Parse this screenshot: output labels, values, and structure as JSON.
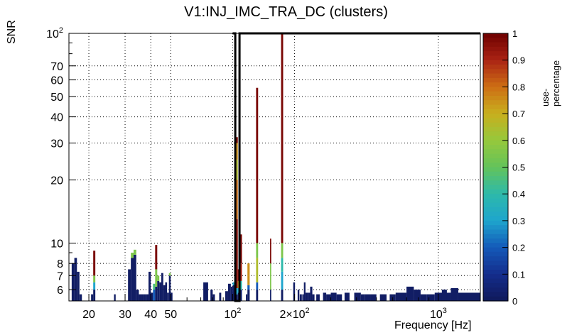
{
  "chart_data": {
    "type": "heatmap",
    "title": "V1:INJ_IMC_TRA_DC (clusters)",
    "xlabel": "Frequency [Hz]",
    "ylabel": "SNR",
    "zlabel": "use-percentage",
    "x_scale": "log",
    "y_scale": "log",
    "xlim": [
      16,
      1600
    ],
    "ylim": [
      5.3,
      100
    ],
    "zlim": [
      0,
      1
    ],
    "x_ticks": [
      "20",
      "30",
      "40",
      "50",
      "10^2",
      "2×10^2",
      "10^3"
    ],
    "y_ticks": [
      "6",
      "7",
      "8",
      "10",
      "20",
      "30",
      "40",
      "50",
      "60",
      "70",
      "10^2"
    ],
    "z_ticks": [
      "0",
      "0.1",
      "0.2",
      "0.3",
      "0.4",
      "0.5",
      "0.6",
      "0.7",
      "0.8",
      "0.9",
      "1"
    ],
    "bins": [
      [
        [
          16.5,
          17
        ],
        [
          5.3,
          8,
          0.02
        ]
      ],
      [
        [
          17,
          17.5
        ],
        [
          5.3,
          8.5,
          0.02
        ]
      ],
      [
        [
          17.5,
          18
        ],
        [
          5.3,
          7.3,
          0.02
        ]
      ],
      [
        [
          18,
          18.5
        ],
        [
          5.3,
          5.7,
          0.02
        ]
      ],
      [
        [
          20.5,
          21
        ],
        [
          5.3,
          5.7,
          0.02
        ]
      ],
      [
        [
          21,
          21.5
        ],
        [
          5.3,
          6,
          0.02
        ],
        [
          6,
          6.5,
          0.3
        ],
        [
          6.5,
          7,
          0.55
        ],
        [
          7,
          9.2,
          0.98
        ]
      ],
      [
        [
          26.5,
          27
        ],
        [
          5.3,
          5.7,
          0.02
        ]
      ],
      [
        [
          31,
          32
        ],
        [
          5.3,
          7.5,
          0.02
        ]
      ],
      [
        [
          32,
          33
        ],
        [
          5.3,
          8.5,
          0.02
        ],
        [
          8.5,
          9,
          0.55
        ]
      ],
      [
        [
          33,
          34
        ],
        [
          5.3,
          8.8,
          0.02
        ],
        [
          8.8,
          9.3,
          0.55
        ]
      ],
      [
        [
          34,
          35
        ],
        [
          5.3,
          6,
          0.02
        ]
      ],
      [
        [
          35,
          36
        ],
        [
          5.3,
          5.7,
          0.02
        ]
      ],
      [
        [
          36,
          37
        ],
        [
          5.3,
          5.7,
          0.02
        ]
      ],
      [
        [
          37,
          38
        ],
        [
          5.3,
          5.7,
          0.02
        ]
      ],
      [
        [
          38,
          39
        ],
        [
          5.3,
          5.7,
          0.02
        ]
      ],
      [
        [
          39,
          40
        ],
        [
          5.3,
          7.3,
          0.02
        ]
      ],
      [
        [
          40,
          41
        ],
        [
          5.3,
          5.8,
          0.02
        ]
      ],
      [
        [
          41,
          42
        ],
        [
          5.3,
          6,
          0.2
        ],
        [
          6,
          6.4,
          0.45
        ]
      ],
      [
        [
          42,
          43
        ],
        [
          5.3,
          6.2,
          0.02
        ],
        [
          6.2,
          7.5,
          0.55
        ],
        [
          7.5,
          9.8,
          0.98
        ]
      ],
      [
        [
          43,
          44
        ],
        [
          5.3,
          6.6,
          0.02
        ],
        [
          6.6,
          7,
          0.55
        ]
      ],
      [
        [
          44,
          45
        ],
        [
          5.3,
          6.5,
          0.02
        ]
      ],
      [
        [
          45,
          46
        ],
        [
          5.3,
          7.2,
          0.02
        ]
      ],
      [
        [
          46,
          47
        ],
        [
          5.3,
          6.3,
          0.02
        ]
      ],
      [
        [
          47,
          48
        ],
        [
          5.3,
          6.1,
          0.02
        ],
        [
          6.1,
          6.5,
          0.02
        ]
      ],
      [
        [
          48,
          49
        ],
        [
          5.3,
          5.8,
          0.02
        ]
      ],
      [
        [
          49,
          50
        ],
        [
          5.3,
          7,
          0.02
        ],
        [
          7,
          7.2,
          0.55
        ]
      ],
      [
        [
          50,
          51
        ],
        [
          5.3,
          5.8,
          0.02
        ]
      ],
      [
        [
          72,
          76
        ],
        [
          5.3,
          6.5,
          0.02
        ]
      ],
      [
        [
          78,
          80
        ],
        [
          5.3,
          6,
          0.02
        ]
      ],
      [
        [
          80,
          82
        ],
        [
          5.3,
          5.7,
          0.02
        ]
      ],
      [
        [
          86,
          88
        ],
        [
          5.3,
          5.8,
          0.02
        ]
      ],
      [
        [
          92,
          95
        ],
        [
          5.3,
          5.9,
          0.02
        ]
      ],
      [
        [
          95,
          98
        ],
        [
          5.3,
          6.4,
          0.02
        ]
      ],
      [
        [
          98,
          100
        ],
        [
          5.3,
          6.2,
          0.02
        ]
      ],
      [
        [
          100,
          102
        ],
        [
          5.3,
          6.3,
          0.02
        ],
        [
          6.3,
          6.5,
          0.3
        ]
      ],
      [
        [
          102,
          104
        ],
        [
          5.3,
          5.8,
          0.02
        ]
      ],
      [
        [
          104,
          106
        ],
        [
          5.3,
          5.7,
          0.02
        ],
        [
          5.7,
          6.1,
          0.3
        ],
        [
          6.1,
          13,
          0.95
        ],
        [
          13,
          20,
          0.8
        ],
        [
          20,
          25,
          0.65
        ],
        [
          25,
          30,
          0.75
        ],
        [
          30,
          32,
          0.98
        ]
      ],
      [
        [
          106,
          108
        ],
        [
          5.3,
          5.8,
          0.02
        ],
        [
          5.8,
          6.1,
          0.3
        ],
        [
          6.1,
          6.6,
          0.7
        ],
        [
          6.6,
          7.5,
          0.95
        ]
      ],
      [
        [
          108,
          111
        ],
        [
          5.3,
          6,
          0.05
        ],
        [
          6,
          6.6,
          0.4
        ],
        [
          6.6,
          8,
          0.9
        ],
        [
          8,
          11,
          0.98
        ]
      ],
      [
        [
          116,
          118
        ],
        [
          5.3,
          5.7,
          0.02
        ]
      ],
      [
        [
          118,
          121
        ],
        [
          5.3,
          6,
          0.02
        ],
        [
          6,
          6.3,
          0.2
        ],
        [
          6.3,
          8,
          0.75
        ]
      ],
      [
        [
          130,
          133
        ],
        [
          5.3,
          6,
          0.02
        ],
        [
          6,
          6.5,
          0.2
        ],
        [
          6.5,
          8.5,
          0.65
        ],
        [
          8.5,
          10,
          0.55
        ],
        [
          10,
          55,
          0.98
        ]
      ],
      [
        [
          152,
          154
        ],
        [
          5.3,
          6,
          0.02
        ],
        [
          6,
          8,
          0.55
        ],
        [
          8,
          10.5,
          0.98
        ]
      ],
      [
        [
          172,
          176
        ],
        [
          5.3,
          6,
          0.02
        ],
        [
          6,
          7.3,
          0.3
        ],
        [
          7.3,
          8.5,
          0.4
        ],
        [
          8.5,
          10,
          0.55
        ],
        [
          10,
          100,
          0.98
        ]
      ],
      [
        [
          197,
          201
        ],
        [
          5.3,
          6.5,
          0.02
        ]
      ],
      [
        [
          207,
          211
        ],
        [
          5.3,
          6,
          0.02
        ]
      ],
      [
        [
          212,
          217
        ],
        [
          5.3,
          5.7,
          0.02
        ]
      ],
      [
        [
          218,
          222
        ],
        [
          5.3,
          5.7,
          0.02
        ]
      ],
      [
        [
          222,
          226
        ],
        [
          5.3,
          6.5,
          0.02
        ]
      ],
      [
        [
          226,
          232
        ],
        [
          5.3,
          5.8,
          0.02
        ]
      ],
      [
        [
          232,
          238
        ],
        [
          5.3,
          5.8,
          0.02
        ]
      ],
      [
        [
          238,
          244
        ],
        [
          5.3,
          6.2,
          0.02
        ]
      ],
      [
        [
          244,
          250
        ],
        [
          5.3,
          5.7,
          0.02
        ]
      ],
      [
        [
          255,
          265
        ],
        [
          5.3,
          5.7,
          0.02
        ]
      ],
      [
        [
          275,
          285
        ],
        [
          5.3,
          5.8,
          0.02
        ]
      ],
      [
        [
          285,
          300
        ],
        [
          5.3,
          5.7,
          0.02
        ]
      ],
      [
        [
          300,
          320
        ],
        [
          5.3,
          5.8,
          0.02
        ]
      ],
      [
        [
          320,
          340
        ],
        [
          5.3,
          5.7,
          0.02
        ]
      ],
      [
        [
          350,
          370
        ],
        [
          5.3,
          5.8,
          0.02
        ]
      ],
      [
        [
          390,
          420
        ],
        [
          5.3,
          5.8,
          0.02
        ]
      ],
      [
        [
          420,
          440
        ],
        [
          5.3,
          5.7,
          0.02
        ]
      ],
      [
        [
          440,
          470
        ],
        [
          5.3,
          5.7,
          0.02
        ]
      ],
      [
        [
          470,
          500
        ],
        [
          5.3,
          5.7,
          0.02
        ]
      ],
      [
        [
          520,
          560
        ],
        [
          5.3,
          5.7,
          0.02
        ]
      ],
      [
        [
          580,
          620
        ],
        [
          5.3,
          5.7,
          0.02
        ]
      ],
      [
        [
          620,
          700
        ],
        [
          5.3,
          5.8,
          0.02
        ]
      ],
      [
        [
          700,
          760
        ],
        [
          5.3,
          6.2,
          0.02
        ]
      ],
      [
        [
          760,
          820
        ],
        [
          5.3,
          6,
          0.02
        ]
      ],
      [
        [
          820,
          880
        ],
        [
          5.3,
          5.7,
          0.02
        ]
      ],
      [
        [
          880,
          960
        ],
        [
          5.3,
          5.7,
          0.02
        ]
      ],
      [
        [
          960,
          1050
        ],
        [
          5.3,
          5.8,
          0.02
        ]
      ],
      [
        [
          1050,
          1150
        ],
        [
          5.3,
          5.8,
          0.02
        ]
      ],
      [
        [
          1150,
          1250
        ],
        [
          5.3,
          6.1,
          0.02
        ]
      ],
      [
        [
          1250,
          1600
        ],
        [
          5.3,
          5.8,
          0.02
        ]
      ],
      [
        [
          1040,
          1100
        ],
        [
          5.3,
          6,
          0.02
        ]
      ]
    ],
    "outline": [
      [
        100,
        100
      ],
      [
        103,
        100
      ],
      [
        103,
        5.3
      ],
      [
        108,
        5.3
      ],
      [
        108,
        100
      ],
      [
        1600,
        100
      ]
    ],
    "grid": true
  }
}
